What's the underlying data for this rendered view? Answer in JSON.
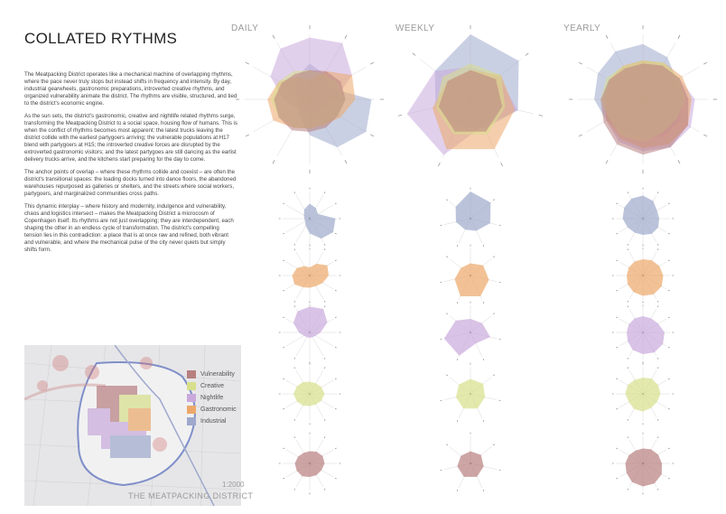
{
  "title": "COLLATED RYTHMS",
  "paragraphs": [
    "The Meatpacking District operates like a mechanical machine of overlapping rhythms, where the pace never truly stops but instead shifts in frequency and intensity. By day, industrial gearwheels, gastronomic preparations, introverted creative rhythms, and organized vulnerability animate the district. The rhythms are visible, structured, and tied to the district's economic engine.",
    "As the sun sets, the district's gastronomic, creative and nightlife related rhythms surge, transforming the Meatpacking District to a social space, housing flow of humans. This is when the conflict of rhythms becomes most apparent: the latest trucks leaving the district collide with the earliest partygoers arriving; the vulnerable populations at H17 blend with partygoers at H15; the introverted creative forces are disrupted by the extroverted gastronomic visitors; and the latest partygoes are still dancing as the earlist delivery trucks arrive, and the kitchens start preparing for the day to come.",
    "The anchor points of overlap – where these rhythms collide and coexist – are often the district's transitional spaces: the loading docks turned into dance floors, the abandoned warehouses repurposed as galleries or shelters, and the streets where social workers, partygoers, and marginalized communities cross paths.",
    "This dynamic interplay – where history and modernity, indulgence and vulnerability, chaos and logistics intersect – makes the Meatpacking District a microcosm of Copenhagen itself. Its rhythms are not just overlapping; they are interdependent, each shaping the other in an endless cycle of transformation. The district's compelling tension lies in this contradiction: a place that is at once raw and refined, both vibrant and vulnerable, and where the mechanical pulse of the city never quiets but simply shifts form."
  ],
  "columns": [
    "DAILY",
    "WEEKLY",
    "YEARLY"
  ],
  "legend": [
    {
      "label": "Vulnerability",
      "color": "#b87f7f"
    },
    {
      "label": "Creative",
      "color": "#d7df8a"
    },
    {
      "label": "Nightlife",
      "color": "#c9a9dc"
    },
    {
      "label": "Gastronomic",
      "color": "#eca86a"
    },
    {
      "label": "Industrial",
      "color": "#9ea9cc"
    }
  ],
  "map": {
    "scale": "1:2000",
    "name": "THE MEATPACKING DISTRICT"
  },
  "chart_data": [
    {
      "type": "radar",
      "title": "DAILY",
      "axes": 12,
      "series": [
        {
          "name": "Industrial",
          "values": [
            0.55,
            0.45,
            0.35,
            0.95,
            1.0,
            0.85,
            0.55,
            0.3,
            0.2,
            0.2,
            0.25,
            0.4
          ]
        },
        {
          "name": "Nightlife",
          "values": [
            0.95,
            1.0,
            0.75,
            0.4,
            0.25,
            0.2,
            0.2,
            0.2,
            0.25,
            0.4,
            0.7,
            0.9
          ]
        },
        {
          "name": "Gastronomic",
          "values": [
            0.3,
            0.5,
            0.75,
            0.7,
            0.55,
            0.45,
            0.45,
            0.5,
            0.65,
            0.65,
            0.55,
            0.4
          ]
        },
        {
          "name": "Creative",
          "values": [
            0.45,
            0.45,
            0.5,
            0.55,
            0.5,
            0.45,
            0.45,
            0.5,
            0.55,
            0.6,
            0.55,
            0.5
          ]
        },
        {
          "name": "Vulnerability",
          "values": [
            0.45,
            0.5,
            0.55,
            0.55,
            0.5,
            0.5,
            0.5,
            0.55,
            0.55,
            0.55,
            0.5,
            0.45
          ]
        }
      ]
    },
    {
      "type": "radar",
      "title": "WEEKLY",
      "axes": 7,
      "series": [
        {
          "name": "Industrial",
          "values": [
            1.0,
            0.95,
            0.75,
            0.5,
            0.45,
            0.55,
            0.7
          ]
        },
        {
          "name": "Nightlife",
          "values": [
            0.5,
            0.55,
            0.75,
            0.45,
            0.95,
            1.0,
            0.7
          ]
        },
        {
          "name": "Gastronomic",
          "values": [
            0.45,
            0.6,
            0.7,
            0.85,
            0.85,
            0.6,
            0.45
          ]
        },
        {
          "name": "Creative",
          "values": [
            0.55,
            0.6,
            0.55,
            0.6,
            0.6,
            0.55,
            0.55
          ]
        },
        {
          "name": "Vulnerability",
          "values": [
            0.45,
            0.5,
            0.5,
            0.55,
            0.55,
            0.5,
            0.45
          ]
        }
      ]
    },
    {
      "type": "radar",
      "title": "YEARLY",
      "axes": 12,
      "series": [
        {
          "name": "Industrial",
          "values": [
            0.85,
            0.75,
            0.6,
            0.6,
            0.65,
            0.65,
            0.6,
            0.6,
            0.65,
            0.75,
            0.8,
            0.85
          ]
        },
        {
          "name": "Nightlife",
          "values": [
            0.6,
            0.6,
            0.65,
            0.8,
            0.85,
            0.85,
            0.8,
            0.75,
            0.65,
            0.6,
            0.6,
            0.6
          ]
        },
        {
          "name": "Gastronomic",
          "values": [
            0.6,
            0.65,
            0.7,
            0.75,
            0.8,
            0.8,
            0.75,
            0.7,
            0.65,
            0.6,
            0.6,
            0.6
          ]
        },
        {
          "name": "Creative",
          "values": [
            0.6,
            0.65,
            0.65,
            0.65,
            0.6,
            0.6,
            0.65,
            0.65,
            0.6,
            0.65,
            0.65,
            0.6
          ]
        },
        {
          "name": "Vulnerability",
          "values": [
            0.55,
            0.6,
            0.65,
            0.7,
            0.8,
            0.85,
            0.85,
            0.8,
            0.7,
            0.65,
            0.6,
            0.55
          ]
        }
      ]
    }
  ]
}
